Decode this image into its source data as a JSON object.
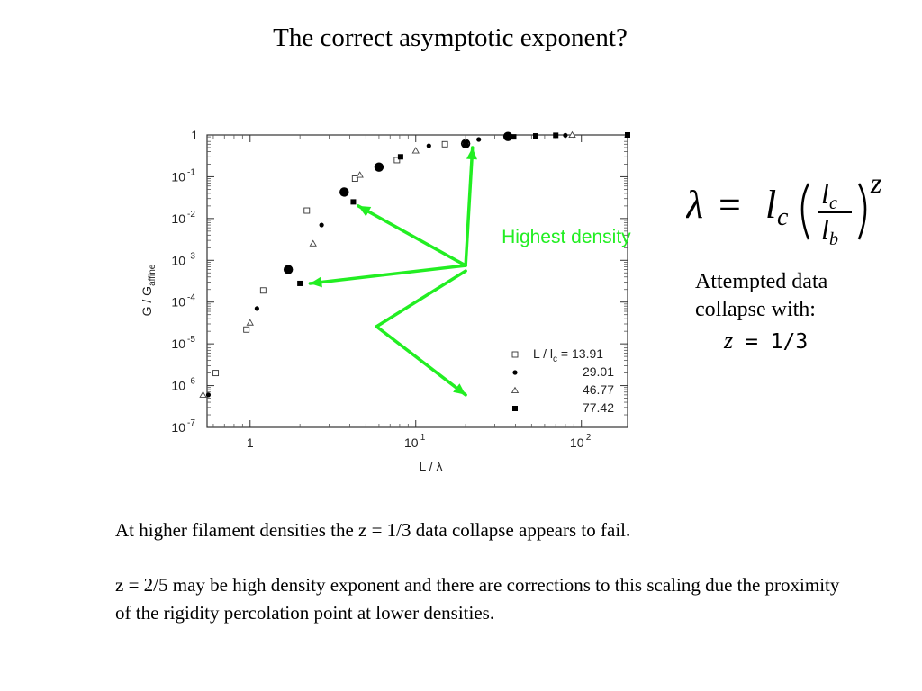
{
  "slide": {
    "title": "The correct asymptotic exponent?",
    "formula": {
      "lhs": "λ",
      "equals": "=",
      "coef": "l",
      "coef_sub": "c",
      "num": "l",
      "num_sub": "c",
      "den": "l",
      "den_sub": "b",
      "exponent": "z"
    },
    "note_text": "Attempted data collapse with:",
    "note_eq_var": "z",
    "note_eq_rest": " = 1/3",
    "paragraphs": [
      "At higher filament densities the z = 1/3 data collapse appears to fail.",
      "z = 2/5 may be high density exponent and there are corrections to this scaling due the proximity of the rigidity percolation point at lower densities."
    ]
  },
  "chart_data": {
    "type": "scatter",
    "x_scale": "log",
    "y_scale": "log",
    "xlim": [
      0.55,
      190
    ],
    "ylim": [
      1e-07,
      1
    ],
    "xlabel": "L / λ",
    "ylabel": "G / G_affine",
    "ylabel_main": "G / G",
    "ylabel_sub": "affine",
    "x_ticks": [
      {
        "value": 1,
        "label": "1",
        "exp": ""
      },
      {
        "value": 10,
        "label": "10",
        "exp": "1"
      },
      {
        "value": 100,
        "label": "10",
        "exp": "2"
      }
    ],
    "y_ticks": [
      {
        "value": 1,
        "label": "1",
        "exp": ""
      },
      {
        "value": 0.1,
        "label": "10",
        "exp": "-1"
      },
      {
        "value": 0.01,
        "label": "10",
        "exp": "-2"
      },
      {
        "value": 0.001,
        "label": "10",
        "exp": "-3"
      },
      {
        "value": 0.0001,
        "label": "10",
        "exp": "-4"
      },
      {
        "value": 1e-05,
        "label": "10",
        "exp": "-5"
      },
      {
        "value": 1e-06,
        "label": "10",
        "exp": "-6"
      },
      {
        "value": 1e-07,
        "label": "10",
        "exp": "-7"
      }
    ],
    "grid": false,
    "legend_position": "bottom-right",
    "legend_header": "L / l",
    "legend_header_sub": "c",
    "legend_header_suffix": " = ",
    "series": [
      {
        "name": "13.91",
        "marker": "open-square",
        "points": [
          {
            "x": 0.62,
            "y": 2e-06
          },
          {
            "x": 0.95,
            "y": 2.2e-05
          },
          {
            "x": 1.2,
            "y": 0.00019
          },
          {
            "x": 2.2,
            "y": 0.0155
          },
          {
            "x": 4.3,
            "y": 0.09
          },
          {
            "x": 7.7,
            "y": 0.25
          },
          {
            "x": 15,
            "y": 0.6
          }
        ]
      },
      {
        "name": "29.01",
        "marker": "filled-circle",
        "points": [
          {
            "x": 0.56,
            "y": 6e-07
          },
          {
            "x": 1.1,
            "y": 7e-05
          },
          {
            "x": 1.7,
            "y": 0.0006
          },
          {
            "x": 2.7,
            "y": 0.007
          },
          {
            "x": 3.7,
            "y": 0.043
          },
          {
            "x": 6.0,
            "y": 0.17
          },
          {
            "x": 12,
            "y": 0.55
          },
          {
            "x": 20,
            "y": 0.62
          },
          {
            "x": 24,
            "y": 0.78
          },
          {
            "x": 36,
            "y": 0.92
          },
          {
            "x": 80,
            "y": 0.98
          }
        ]
      },
      {
        "name": "46.77",
        "marker": "open-triangle",
        "points": [
          {
            "x": 0.52,
            "y": 6e-07
          },
          {
            "x": 1.0,
            "y": 3.2e-05
          },
          {
            "x": 2.4,
            "y": 0.0025
          },
          {
            "x": 4.6,
            "y": 0.11
          },
          {
            "x": 10,
            "y": 0.42
          },
          {
            "x": 20,
            "y": 0.7
          },
          {
            "x": 88,
            "y": 1.0
          }
        ]
      },
      {
        "name": "77.42",
        "marker": "filled-square",
        "points": [
          {
            "x": 2.0,
            "y": 0.00028
          },
          {
            "x": 4.2,
            "y": 0.025
          },
          {
            "x": 8.1,
            "y": 0.3
          },
          {
            "x": 20,
            "y": 0.65
          },
          {
            "x": 39,
            "y": 0.9
          },
          {
            "x": 53,
            "y": 0.95
          },
          {
            "x": 70,
            "y": 0.98
          },
          {
            "x": 190,
            "y": 1.0
          }
        ]
      }
    ],
    "annotation": {
      "text": "Highest density",
      "color": "#22ee22",
      "origin": {
        "x": 20,
        "y": 0.00075
      },
      "arrows": [
        {
          "x": 22,
          "y": 0.5
        },
        {
          "x": 4.5,
          "y": 0.02
        },
        {
          "x": 2.3,
          "y": 0.00028
        }
      ],
      "elbow": {
        "x": 5.8,
        "y": 2.6e-05
      },
      "elbow_target": {
        "x": 20,
        "y": 6e-07
      }
    }
  }
}
